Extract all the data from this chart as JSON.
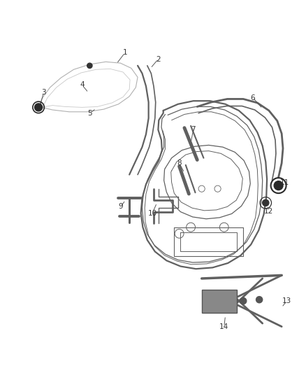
{
  "bg_color": "#ffffff",
  "line_color": "#606060",
  "label_color": "#333333",
  "figsize": [
    4.38,
    5.33
  ],
  "dpi": 100,
  "lw_main": 1.4,
  "lw_thin": 0.8,
  "lw_thick": 2.0
}
